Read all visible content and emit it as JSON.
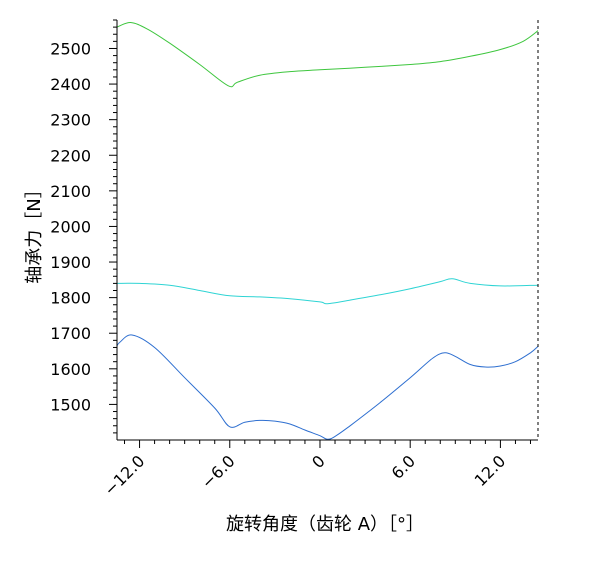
{
  "chart_data": {
    "type": "line",
    "xlabel": "旋转角度（齿轮 A）［°］",
    "ylabel": "轴承力［N］",
    "xlim": [
      -13.5,
      14.5
    ],
    "ylim": [
      1400,
      2580
    ],
    "x_ticks": [
      -12,
      -6,
      0,
      6,
      12
    ],
    "x_tick_labels": [
      "−12.0",
      "−6.0",
      "0",
      "6.0",
      "12.0"
    ],
    "y_ticks": [
      1500,
      1600,
      1700,
      1800,
      1900,
      2000,
      2100,
      2200,
      2300,
      2400,
      2500
    ],
    "y_tick_labels": [
      "1500",
      "1600",
      "1700",
      "1800",
      "1900",
      "2000",
      "2100",
      "2200",
      "2300",
      "2400",
      "2500"
    ],
    "grid": false,
    "series": [
      {
        "color": "#3ec63e",
        "x": [
          -13.5,
          -12.6,
          -11.5,
          -10,
          -8,
          -6.1,
          -5.5,
          -4,
          -2,
          0,
          3,
          6,
          8,
          10,
          12,
          13.5,
          14.5
        ],
        "y": [
          2560,
          2573,
          2555,
          2515,
          2455,
          2395,
          2405,
          2425,
          2435,
          2440,
          2447,
          2455,
          2463,
          2478,
          2497,
          2520,
          2550
        ]
      },
      {
        "color": "#2fd4d4",
        "x": [
          -13.5,
          -12,
          -10,
          -8,
          -6,
          -4,
          -2,
          0,
          0.5,
          2,
          4,
          6,
          8,
          8.8,
          10,
          12,
          14.5
        ],
        "y": [
          1840,
          1840,
          1835,
          1820,
          1805,
          1802,
          1797,
          1788,
          1783,
          1793,
          1808,
          1825,
          1845,
          1853,
          1840,
          1833,
          1835
        ]
      },
      {
        "color": "#2e6fd0",
        "x": [
          -13.5,
          -13.3,
          -12.5,
          -11,
          -9,
          -7,
          -6,
          -5,
          -4,
          -3,
          -2,
          -1,
          0,
          0.5,
          1,
          2,
          4,
          6,
          7.5,
          8.3,
          9,
          10,
          11,
          12,
          13,
          14,
          14.5
        ],
        "y": [
          1665,
          1675,
          1695,
          1660,
          1575,
          1490,
          1437,
          1450,
          1455,
          1453,
          1445,
          1428,
          1412,
          1402,
          1410,
          1440,
          1505,
          1575,
          1630,
          1645,
          1635,
          1612,
          1605,
          1608,
          1620,
          1645,
          1663
        ]
      }
    ]
  }
}
